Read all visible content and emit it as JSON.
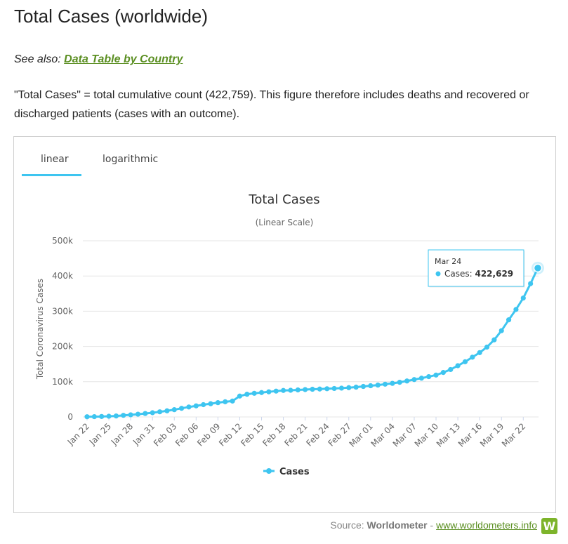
{
  "header": {
    "title": "Total Cases (worldwide)",
    "see_also_prefix": "See also:",
    "see_also_link": "Data Table by Country",
    "description": "\"Total Cases\" = total cumulative count (422,759). This figure therefore includes deaths and recovered or discharged patients (cases with an outcome)."
  },
  "tabs": [
    {
      "label": "linear",
      "active": true
    },
    {
      "label": "logarithmic",
      "active": false
    }
  ],
  "colors": {
    "series": "#3ec5f0",
    "accent_green": "#5b8f22",
    "grid": "#e6e6e6"
  },
  "chart_data": {
    "type": "line",
    "title": "Total Cases",
    "subtitle": "(Linear Scale)",
    "xlabel": "",
    "ylabel": "Total Coronavirus Cases",
    "ylim": [
      0,
      500000
    ],
    "y_ticks": [
      0,
      100000,
      200000,
      300000,
      400000,
      500000
    ],
    "y_tick_labels": [
      "0",
      "100k",
      "200k",
      "300k",
      "400k",
      "500k"
    ],
    "x_tick_labels": [
      "Jan 22",
      "Jan 25",
      "Jan 28",
      "Jan 31",
      "Feb 03",
      "Feb 06",
      "Feb 09",
      "Feb 12",
      "Feb 15",
      "Feb 18",
      "Feb 21",
      "Feb 24",
      "Feb 27",
      "Mar 01",
      "Mar 04",
      "Mar 07",
      "Mar 10",
      "Mar 13",
      "Mar 16",
      "Mar 19",
      "Mar 22"
    ],
    "legend": "bottom-center",
    "grid": true,
    "categories": [
      "Jan 22",
      "Jan 23",
      "Jan 24",
      "Jan 25",
      "Jan 26",
      "Jan 27",
      "Jan 28",
      "Jan 29",
      "Jan 30",
      "Jan 31",
      "Feb 01",
      "Feb 02",
      "Feb 03",
      "Feb 04",
      "Feb 05",
      "Feb 06",
      "Feb 07",
      "Feb 08",
      "Feb 09",
      "Feb 10",
      "Feb 11",
      "Feb 12",
      "Feb 13",
      "Feb 14",
      "Feb 15",
      "Feb 16",
      "Feb 17",
      "Feb 18",
      "Feb 19",
      "Feb 20",
      "Feb 21",
      "Feb 22",
      "Feb 23",
      "Feb 24",
      "Feb 25",
      "Feb 26",
      "Feb 27",
      "Feb 28",
      "Feb 29",
      "Mar 01",
      "Mar 02",
      "Mar 03",
      "Mar 04",
      "Mar 05",
      "Mar 06",
      "Mar 07",
      "Mar 08",
      "Mar 09",
      "Mar 10",
      "Mar 11",
      "Mar 12",
      "Mar 13",
      "Mar 14",
      "Mar 15",
      "Mar 16",
      "Mar 17",
      "Mar 18",
      "Mar 19",
      "Mar 20",
      "Mar 21",
      "Mar 22",
      "Mar 23",
      "Mar 24"
    ],
    "series": [
      {
        "name": "Cases",
        "values": [
          580,
          845,
          1317,
          2015,
          2800,
          4581,
          6058,
          7813,
          9821,
          11948,
          14551,
          17389,
          20628,
          24553,
          28276,
          31439,
          34876,
          37552,
          40553,
          43099,
          45134,
          59287,
          64438,
          67100,
          69197,
          71329,
          73332,
          75184,
          75700,
          76677,
          77673,
          78651,
          79205,
          80087,
          80828,
          81820,
          83112,
          84615,
          86604,
          88585,
          90443,
          93016,
          95314,
          98425,
          102050,
          106099,
          109991,
          114381,
          118948,
          126214,
          134576,
          145483,
          156653,
          169593,
          182490,
          198238,
          218822,
          244933,
          275597,
          305036,
          337459,
          378287,
          422629
        ]
      }
    ],
    "tooltip": {
      "date": "Mar 24",
      "series": "Cases",
      "value": "422,629"
    }
  },
  "source": {
    "prefix": "Source:",
    "name": "Worldometer",
    "separator": "-",
    "link": "www.worldometers.info",
    "logo_letter": "W"
  }
}
